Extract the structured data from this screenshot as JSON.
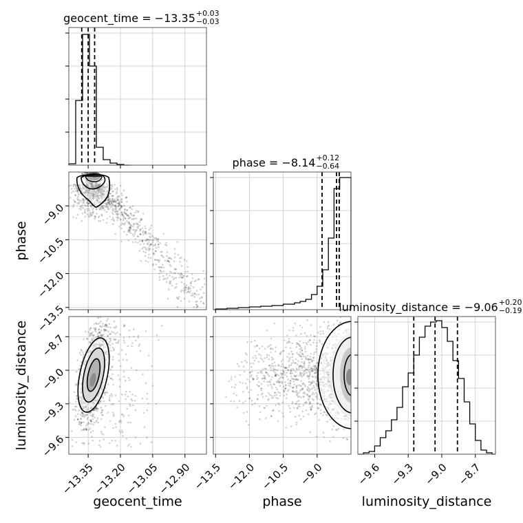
{
  "chart_data": {
    "type": "corner",
    "parameters": [
      "geocent_time",
      "phase",
      "luminosity_distance"
    ],
    "titles": [
      {
        "name": "geocent_time",
        "median": "−13.35",
        "plus": "+0.03",
        "minus": "−0.03"
      },
      {
        "name": "phase",
        "median": "−8.14",
        "plus": "+0.12",
        "minus": "−0.64"
      },
      {
        "name": "luminosity_distance",
        "median": "−9.06",
        "plus": "+0.20",
        "minus": "−0.19"
      }
    ],
    "ranges": {
      "geocent_time": [
        -13.44,
        -12.8
      ],
      "phase": [
        -13.6,
        -7.5
      ],
      "luminosity_distance": [
        -9.75,
        -8.52
      ]
    },
    "ticks": {
      "geocent_time": {
        "values": [
          -13.35,
          -13.2,
          -13.05,
          -12.9
        ],
        "labels": [
          "−13.35",
          "−13.20",
          "−13.05",
          "−12.90"
        ]
      },
      "phase": {
        "values": [
          -13.5,
          -12.0,
          -10.5,
          -9.0
        ],
        "labels": [
          "−13.5",
          "−12.0",
          "−10.5",
          "−9.0"
        ]
      },
      "luminosity_distance": {
        "values": [
          -9.6,
          -9.3,
          -9.0,
          -8.7
        ],
        "labels": [
          "−9.6",
          "−9.3",
          "−9.0",
          "−8.7"
        ]
      }
    },
    "quantiles": {
      "geocent_time": [
        -13.38,
        -13.35,
        -13.32
      ],
      "phase": [
        -8.78,
        -8.14,
        -8.02
      ],
      "luminosity_distance": [
        -9.25,
        -9.06,
        -8.86
      ]
    },
    "histograms": {
      "geocent_time": {
        "edges": [
          -13.44,
          -13.408,
          -13.376,
          -13.344,
          -13.312,
          -13.28,
          -13.248,
          -13.216,
          -13.184,
          -13.152
        ],
        "counts": [
          0.01,
          0.47,
          0.95,
          0.72,
          0.13,
          0.04,
          0.015,
          0.005,
          0.0
        ]
      },
      "phase": {
        "edges": [
          -13.6,
          -13.5,
          -13.0,
          -12.5,
          -12.0,
          -11.5,
          -11.0,
          -10.5,
          -10.0,
          -9.75,
          -9.5,
          -9.25,
          -9.0,
          -8.75,
          -8.5,
          -8.25,
          -8.0,
          -7.75,
          -7.5
        ],
        "counts": [
          0.0,
          0.005,
          0.01,
          0.015,
          0.02,
          0.025,
          0.03,
          0.04,
          0.05,
          0.06,
          0.075,
          0.11,
          0.17,
          0.29,
          0.52,
          0.88,
          0.96,
          0.96
        ]
      },
      "luminosity_distance": {
        "edges": [
          -9.75,
          -9.7,
          -9.65,
          -9.6,
          -9.55,
          -9.5,
          -9.45,
          -9.4,
          -9.35,
          -9.3,
          -9.25,
          -9.2,
          -9.15,
          -9.1,
          -9.05,
          -9.0,
          -8.95,
          -8.9,
          -8.85,
          -8.8,
          -8.75,
          -8.7,
          -8.65,
          -8.6,
          -8.55,
          -8.52
        ],
        "counts": [
          0.0,
          0.01,
          0.02,
          0.06,
          0.12,
          0.17,
          0.25,
          0.34,
          0.49,
          0.59,
          0.72,
          0.85,
          0.93,
          0.96,
          0.97,
          0.92,
          0.82,
          0.68,
          0.55,
          0.38,
          0.22,
          0.1,
          0.03,
          0.01,
          0.0
        ]
      }
    },
    "density_2d": {
      "phase_vs_geocent_time": {
        "mode": {
          "x": -13.35,
          "y": -7.8
        },
        "tail_to": {
          "x": -12.85,
          "y": -13.5
        }
      },
      "luminosity_distance_vs_geocent_time": {
        "mode": {
          "x": -13.36,
          "y": -9.1
        }
      },
      "luminosity_distance_vs_phase": {
        "mode": {
          "x": -7.65,
          "y": -9.05
        }
      }
    },
    "grid": true,
    "levels": 3
  }
}
